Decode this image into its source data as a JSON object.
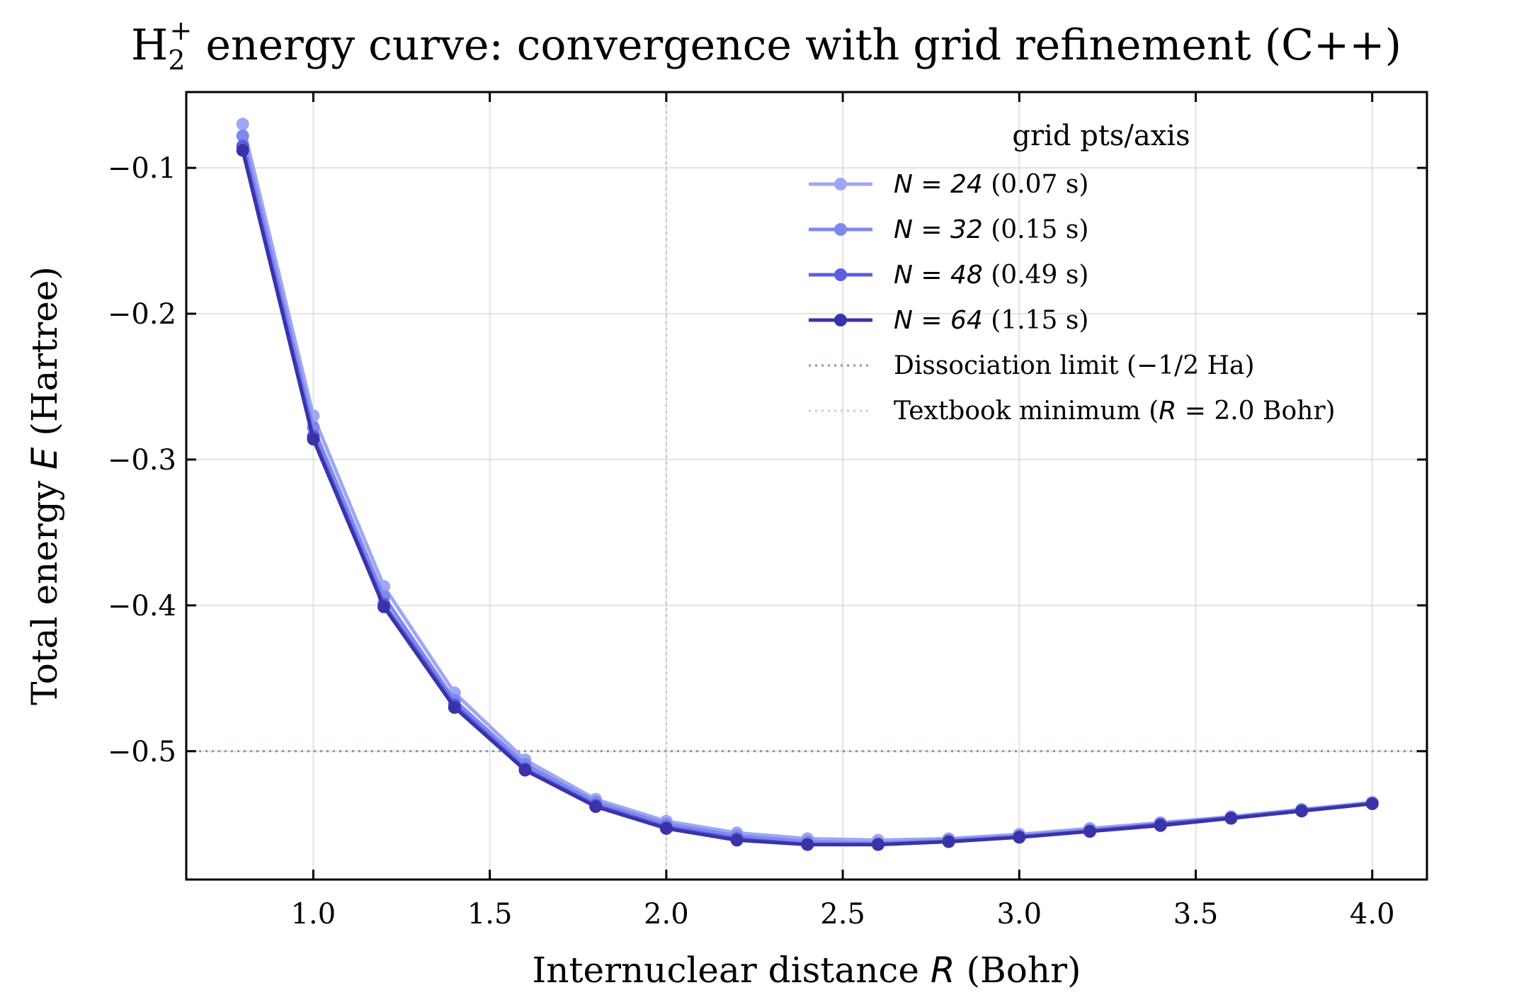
{
  "chart_data": {
    "type": "line",
    "title_parts": {
      "molecule": "H",
      "subscript": "2",
      "superscript": "+",
      "rest": " energy curve: convergence with grid refinement (C++)"
    },
    "xlabel_parts": {
      "pre": "Internuclear distance ",
      "var": "R",
      "post": " (Bohr)"
    },
    "ylabel_parts": {
      "pre": "Total energy ",
      "var": "E",
      "post": " (Hartree)"
    },
    "xlim": [
      0.64,
      4.155
    ],
    "ylim": [
      -0.588,
      -0.048
    ],
    "xticks": [
      1.0,
      1.5,
      2.0,
      2.5,
      3.0,
      3.5,
      4.0
    ],
    "xtick_labels": [
      "1.0",
      "1.5",
      "2.0",
      "2.5",
      "3.0",
      "3.5",
      "4.0"
    ],
    "yticks": [
      -0.1,
      -0.2,
      -0.3,
      -0.4,
      -0.5
    ],
    "ytick_labels": [
      "−0.1",
      "−0.2",
      "−0.3",
      "−0.4",
      "−0.5"
    ],
    "grid": true,
    "legend": {
      "title": "grid pts/axis",
      "placement": "upper-right",
      "entries": [
        {
          "var": "N",
          "eq": " = 24",
          "extra": "  (0.07 s)"
        },
        {
          "var": "N",
          "eq": " = 32",
          "extra": "  (0.15 s)"
        },
        {
          "var": "N",
          "eq": " = 48",
          "extra": "  (0.49 s)"
        },
        {
          "var": "N",
          "eq": " = 64",
          "extra": "  (1.15 s)"
        }
      ],
      "ref_entries": [
        {
          "pre": "Dissociation limit (−1/2 Ha)",
          "var": "",
          "post": ""
        },
        {
          "pre": "Textbook minimum (",
          "var": "R",
          "post": " = 2.0 Bohr)"
        }
      ]
    },
    "x": [
      0.8,
      1.0,
      1.2,
      1.4,
      1.6,
      1.8,
      2.0,
      2.2,
      2.4,
      2.6,
      2.8,
      3.0,
      3.2,
      3.4,
      3.6,
      3.8,
      4.0
    ],
    "series": [
      {
        "color": "#9ea7f5",
        "values": [
          -0.07,
          -0.27,
          -0.387,
          -0.46,
          -0.506,
          -0.533,
          -0.548,
          -0.556,
          -0.56,
          -0.561,
          -0.56,
          -0.557,
          -0.553,
          -0.549,
          -0.545,
          -0.54,
          -0.535
        ]
      },
      {
        "color": "#7e89ee",
        "values": [
          -0.078,
          -0.278,
          -0.394,
          -0.465,
          -0.509,
          -0.535,
          -0.55,
          -0.558,
          -0.562,
          -0.563,
          -0.561,
          -0.558,
          -0.554,
          -0.55,
          -0.545,
          -0.54,
          -0.536
        ]
      },
      {
        "color": "#5a5fe0",
        "values": [
          -0.085,
          -0.284,
          -0.399,
          -0.468,
          -0.512,
          -0.537,
          -0.552,
          -0.56,
          -0.564,
          -0.564,
          -0.562,
          -0.559,
          -0.555,
          -0.55,
          -0.546,
          -0.541,
          -0.536
        ]
      },
      {
        "color": "#3a33a8",
        "values": [
          -0.088,
          -0.286,
          -0.401,
          -0.47,
          -0.513,
          -0.538,
          -0.553,
          -0.561,
          -0.564,
          -0.564,
          -0.562,
          -0.559,
          -0.555,
          -0.551,
          -0.546,
          -0.541,
          -0.536
        ]
      }
    ],
    "reference_lines": [
      {
        "orientation": "horizontal",
        "value": -0.5,
        "color": "#8494ab"
      },
      {
        "orientation": "vertical",
        "value": 2.0,
        "color": "#c3cfdc"
      }
    ]
  }
}
